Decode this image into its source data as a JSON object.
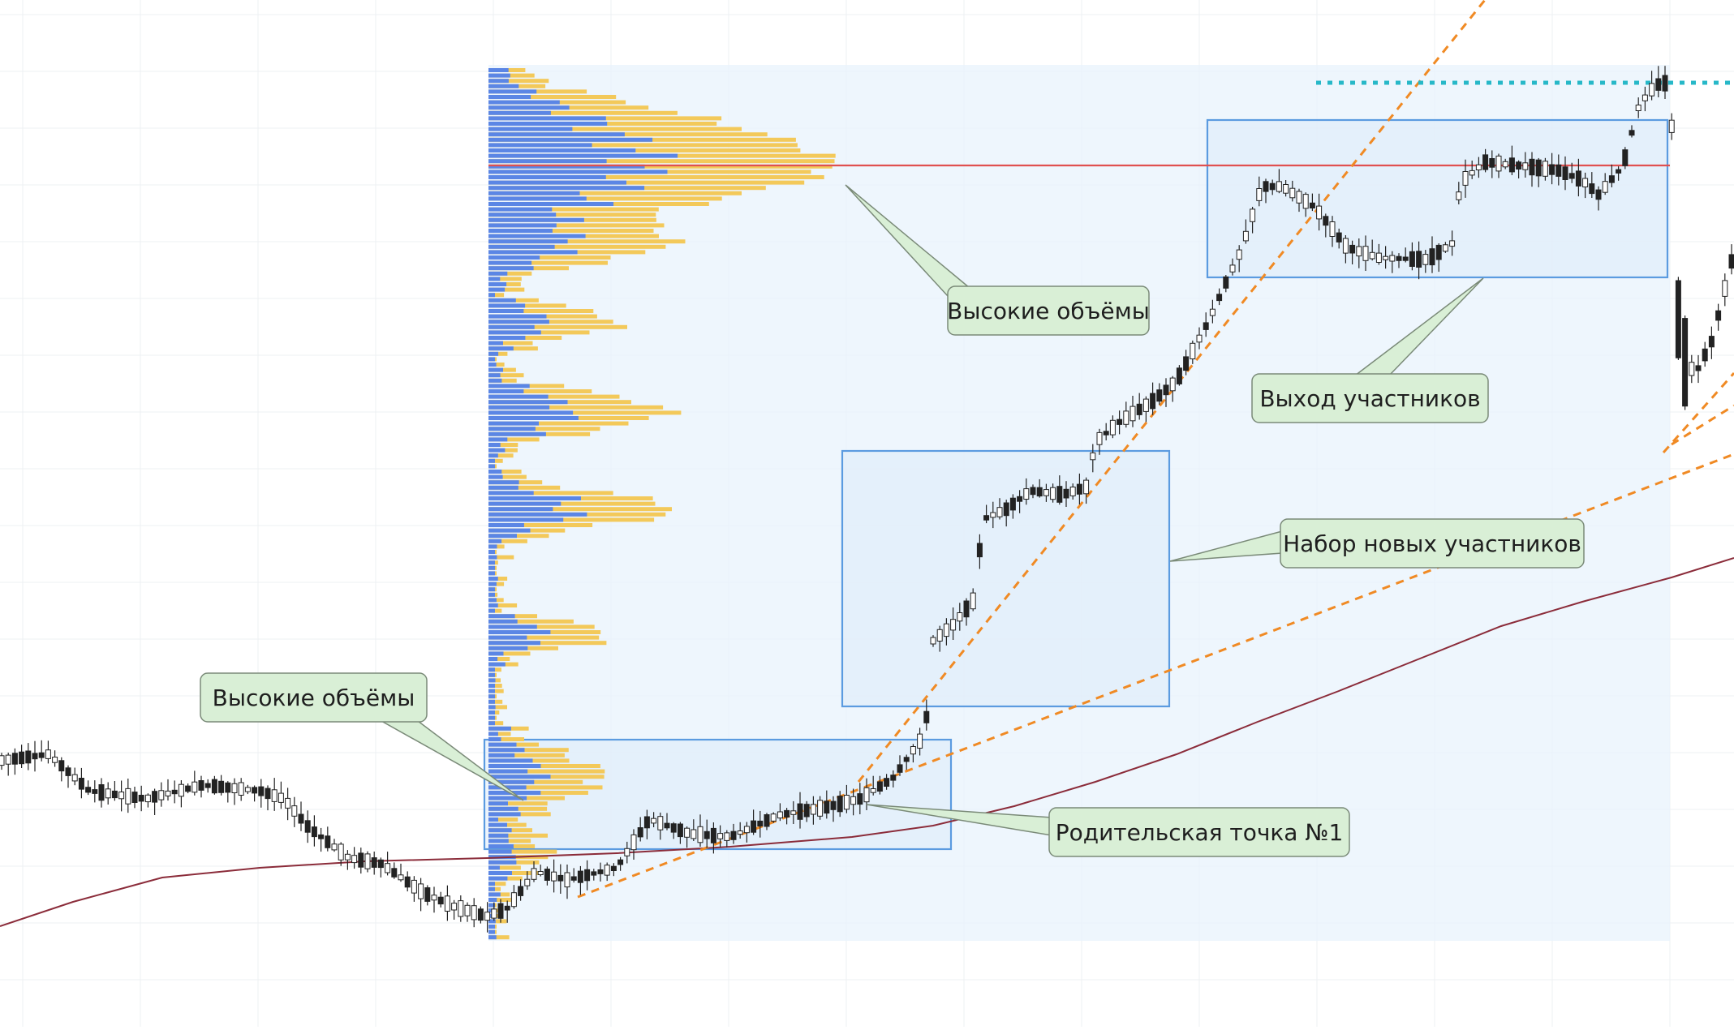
{
  "chart_data": {
    "type": "candlestick",
    "grid": true,
    "colors": {
      "background": "#ffffff",
      "grid": "#eef0f3",
      "vp_background": "#e8f3fc",
      "vp_buy": "#5b86e5",
      "vp_sell": "#f3c95a",
      "poc_line": "#e05050",
      "moving_average": "#8b2c3a",
      "trendline": "#f08a24",
      "resistance": "#27b8c8",
      "zone_stroke": "#5b9be0",
      "zone_fill": "#dcebfa",
      "callout_fill": "#d9efd6",
      "callout_stroke": "#7a8a78",
      "candle_up": "#ffffff",
      "candle_down": "#222222",
      "candle_wick": "#222222"
    },
    "annotations": [
      {
        "id": "high-volume-top",
        "label": "Высокие объёмы"
      },
      {
        "id": "participants-exit",
        "label": "Выход участников"
      },
      {
        "id": "new-participants",
        "label": "Набор новых участников"
      },
      {
        "id": "high-volume-bottom",
        "label": "Высокие объёмы"
      },
      {
        "id": "parent-point-1",
        "label": "Родительская точка №1"
      }
    ]
  }
}
